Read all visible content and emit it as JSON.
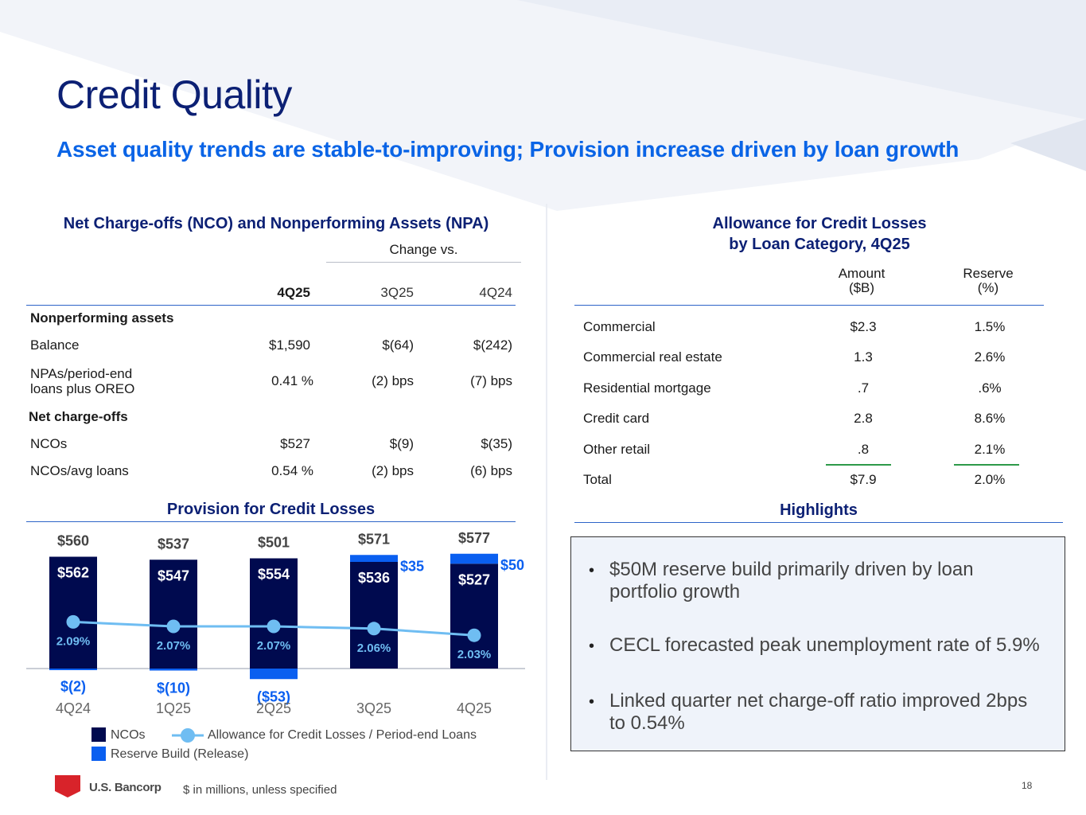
{
  "header": {
    "title": "Credit Quality",
    "subtitle": "Asset quality trends are stable-to-improving; Provision increase driven by loan growth"
  },
  "nco_table": {
    "title": "Net Charge-offs (NCO) and Nonperforming Assets (NPA)",
    "change_vs": "Change vs.",
    "columns": [
      "4Q25",
      "3Q25",
      "4Q24"
    ],
    "section1": "Nonperforming assets",
    "rows1": [
      {
        "label": "Balance",
        "v1": "$1,590",
        "v2": "$(64)",
        "v3": "$(242)"
      },
      {
        "label1": "NPAs/period-end",
        "label2": "loans plus OREO",
        "v1": "0.41 %",
        "v2": "(2) bps",
        "v3": "(7) bps"
      }
    ],
    "section2": "Net charge-offs",
    "rows2": [
      {
        "label": "NCOs",
        "v1": "$527",
        "v2": "$(9)",
        "v3": "$(35)"
      },
      {
        "label": "NCOs/avg loans",
        "v1": "0.54 %",
        "v2": "(2) bps",
        "v3": "(6) bps"
      }
    ]
  },
  "allowance_table": {
    "title_line1": "Allowance for Credit Losses",
    "title_line2": "by Loan Category, 4Q25",
    "col_amount_1": "Amount",
    "col_amount_2": "($B)",
    "col_reserve_1": "Reserve",
    "col_reserve_2": "(%)",
    "rows": [
      {
        "label": "Commercial",
        "amount": "$2.3",
        "reserve": "1.5%"
      },
      {
        "label": "Commercial real estate",
        "amount": "1.3",
        "reserve": "2.6%"
      },
      {
        "label": "Residential mortgage",
        "amount": ".7",
        "reserve": ".6%"
      },
      {
        "label": "Credit card",
        "amount": "2.8",
        "reserve": "8.6%"
      },
      {
        "label": "Other retail",
        "amount": ".8",
        "reserve": "2.1%"
      },
      {
        "label": "Total",
        "amount": "$7.9",
        "reserve": "2.0%"
      }
    ]
  },
  "highlights": {
    "title": "Highlights",
    "bullets": [
      {
        "line1": "$50M reserve build primarily driven by loan",
        "line2": "portfolio growth"
      },
      {
        "line1": "CECL forecasted peak unemployment rate of 5.9%",
        "line2": ""
      },
      {
        "line1": "Linked quarter net charge-off ratio improved 2bps",
        "line2": "to 0.54%"
      }
    ]
  },
  "chart_data": {
    "type": "bar",
    "title": "Provision for Credit Losses",
    "categories": [
      "4Q24",
      "1Q25",
      "2Q25",
      "3Q25",
      "4Q25"
    ],
    "series": [
      {
        "name": "NCOs",
        "values": [
          562,
          547,
          554,
          536,
          527
        ],
        "labels": [
          "$562",
          "$547",
          "$554",
          "$536",
          "$527"
        ]
      },
      {
        "name": "Reserve Build (Release)",
        "values": [
          -2,
          -10,
          -53,
          35,
          50
        ],
        "labels": [
          "$(2)",
          "$(10)",
          "($53)",
          "$35",
          "$50"
        ]
      },
      {
        "name": "Allowance for Credit Losses / Period-end Loans",
        "values": [
          2.09,
          2.07,
          2.07,
          2.06,
          2.03
        ],
        "labels": [
          "2.09%",
          "2.07%",
          "2.07%",
          "2.06%",
          "2.03%"
        ]
      }
    ],
    "totals": [
      "$560",
      "$537",
      "$501",
      "$571",
      "$577"
    ],
    "total_values": [
      560,
      537,
      501,
      571,
      577
    ],
    "legend": {
      "nco": "NCOs",
      "ratio": "Allowance for Credit Losses / Period-end Loans",
      "reserve": "Reserve Build (Release)"
    },
    "colors": {
      "nco": "#000a4f",
      "reserve": "#0a5ff0",
      "ratio": "#6fbdf2",
      "label_blue": "#0a5ff0"
    }
  },
  "footer": {
    "logo": "U.S. Bancorp",
    "note": "$ in millions, unless specified",
    "page": "18"
  }
}
